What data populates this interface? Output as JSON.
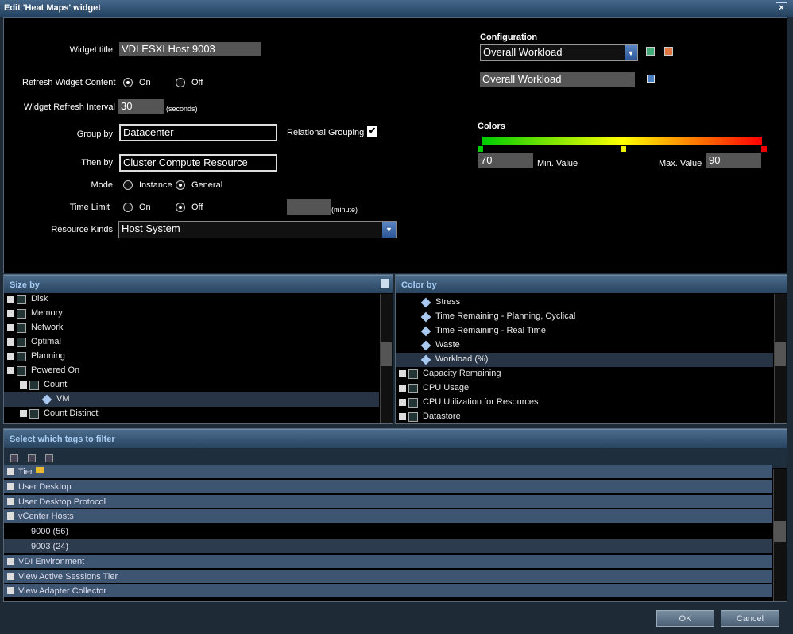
{
  "window": {
    "title": "Edit 'Heat Maps' widget"
  },
  "general": {
    "widget_title": {
      "label": "Widget title",
      "value": "VDI ESXI Host 9003"
    },
    "refresh_content": {
      "label": "Refresh Widget Content",
      "options": [
        "On",
        "Off"
      ]
    },
    "refresh_interval": {
      "label": "Widget Refresh Interval",
      "value": 30,
      "unit": "(seconds)"
    },
    "group_by": {
      "label": "Group by",
      "value": "Datacenter"
    },
    "relational_grouping": {
      "label": "Relational Grouping"
    },
    "then_by": {
      "label": "Then by",
      "value": "Cluster Compute Resource"
    },
    "mode": {
      "label": "Mode",
      "options": [
        "Instance",
        "General"
      ]
    },
    "time_limit": {
      "label": "Time Limit",
      "options": [
        "On",
        "Off"
      ],
      "unit": "(minute)"
    },
    "resource_kinds": {
      "label": "Resource Kinds",
      "value": "Host System"
    }
  },
  "configuration": {
    "label": "Configuration",
    "selected": "Overall Workload",
    "name": "Overall Workload"
  },
  "colors": {
    "label": "Colors",
    "min_label": "Min. Value",
    "min": 70,
    "max_label": "Max. Value",
    "max": 90
  },
  "size_by": {
    "title": "Size by",
    "items": [
      "Disk",
      "Memory",
      "Network",
      "Optimal",
      "Planning",
      "Powered On",
      "Count",
      "VM",
      "Count Distinct"
    ]
  },
  "color_by": {
    "title": "Color by",
    "items": [
      "Stress",
      "Time Remaining - Planning, Cyclical",
      "Time Remaining - Real Time",
      "Waste",
      "Workload (%)",
      "Capacity Remaining",
      "CPU Usage",
      "CPU Utilization for Resources",
      "Datastore"
    ]
  },
  "tags": {
    "title": "Select which tags to filter",
    "items": [
      "Tier",
      "User Desktop",
      "User Desktop Protocol",
      "vCenter Hosts",
      "9000 (56)",
      "9003 (24)",
      "VDI Environment",
      "View Active Sessions Tier",
      "View Adapter Collector"
    ]
  },
  "buttons": {
    "ok": "OK",
    "cancel": "Cancel"
  }
}
